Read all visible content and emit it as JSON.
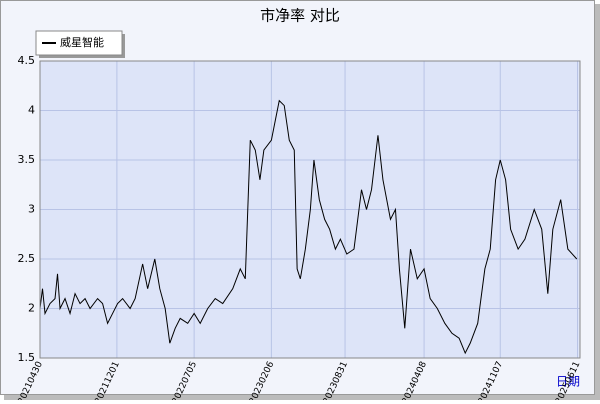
{
  "chart_data": {
    "type": "line",
    "title": "市净率  对比",
    "x_label": "日期",
    "x": [
      "20210430",
      "20210507",
      "20210514",
      "20210528",
      "20210611",
      "20210618",
      "20210625",
      "20210709",
      "20210723",
      "20210806",
      "20210820",
      "20210903",
      "20210917",
      "20211008",
      "20211022",
      "20211105",
      "20211119",
      "20211203",
      "20211217",
      "20220107",
      "20220121",
      "20220211",
      "20220225",
      "20220317",
      "20220331",
      "20220415",
      "20220428",
      "20220513",
      "20220527",
      "20220617",
      "20220705",
      "20220722",
      "20220812",
      "20220902",
      "20220923",
      "20221021",
      "20221111",
      "20221125",
      "20221209",
      "20221223",
      "20230105",
      "20230116",
      "20230206",
      "20230217",
      "20230228",
      "20230314",
      "20230328",
      "20230411",
      "20230419",
      "20230428",
      "20230512",
      "20230526",
      "20230605",
      "20230620",
      "20230705",
      "20230719",
      "20230804",
      "20230818",
      "20230905",
      "20230925",
      "20231016",
      "20231030",
      "20231113",
      "20231201",
      "20231215",
      "20240105",
      "20240119",
      "20240130",
      "20240214",
      "20240301",
      "20240320",
      "20240408",
      "20240425",
      "20240515",
      "20240605",
      "20240625",
      "20240715",
      "20240801",
      "20240815",
      "20240905",
      "20240925",
      "20241010",
      "20241025",
      "20241107",
      "20241122",
      "20241206",
      "20241227",
      "20250115",
      "20250210",
      "20250303",
      "20250320",
      "20250403",
      "20250425",
      "20250515",
      "20250609"
    ],
    "series": [
      {
        "name": "威星智能",
        "color": "#000000",
        "values": [
          2.0,
          2.2,
          1.95,
          2.05,
          2.1,
          2.35,
          2.0,
          2.1,
          1.95,
          2.15,
          2.05,
          2.1,
          2.0,
          2.1,
          2.05,
          1.85,
          1.95,
          2.05,
          2.1,
          2.0,
          2.1,
          2.45,
          2.2,
          2.5,
          2.2,
          2.0,
          1.65,
          1.8,
          1.9,
          1.85,
          1.95,
          1.85,
          2.0,
          2.1,
          2.05,
          2.2,
          2.4,
          2.3,
          3.7,
          3.6,
          3.3,
          3.6,
          3.7,
          3.9,
          4.1,
          4.05,
          3.7,
          3.6,
          2.4,
          2.3,
          2.6,
          3.0,
          3.5,
          3.1,
          2.9,
          2.8,
          2.6,
          2.7,
          2.55,
          2.6,
          3.2,
          3.0,
          3.2,
          3.75,
          3.3,
          2.9,
          3.0,
          2.4,
          1.8,
          2.6,
          2.3,
          2.4,
          2.1,
          2.0,
          1.85,
          1.75,
          1.7,
          1.55,
          1.65,
          1.85,
          2.4,
          2.6,
          3.3,
          3.5,
          3.3,
          2.8,
          2.6,
          2.7,
          3.0,
          2.8,
          2.15,
          2.8,
          3.1,
          2.6,
          2.5
        ]
      }
    ],
    "xlim": [
      "20210430",
      "20250618"
    ],
    "xticks": [
      "20210430",
      "20211201",
      "20220705",
      "20230206",
      "20230831",
      "20240408",
      "20241107",
      "20250611"
    ],
    "ylim": [
      1.5,
      4.5
    ],
    "yticks": [
      1.5,
      2.0,
      2.5,
      3.0,
      3.5,
      4.0,
      4.5
    ],
    "grid": true,
    "legend": "upper left"
  }
}
